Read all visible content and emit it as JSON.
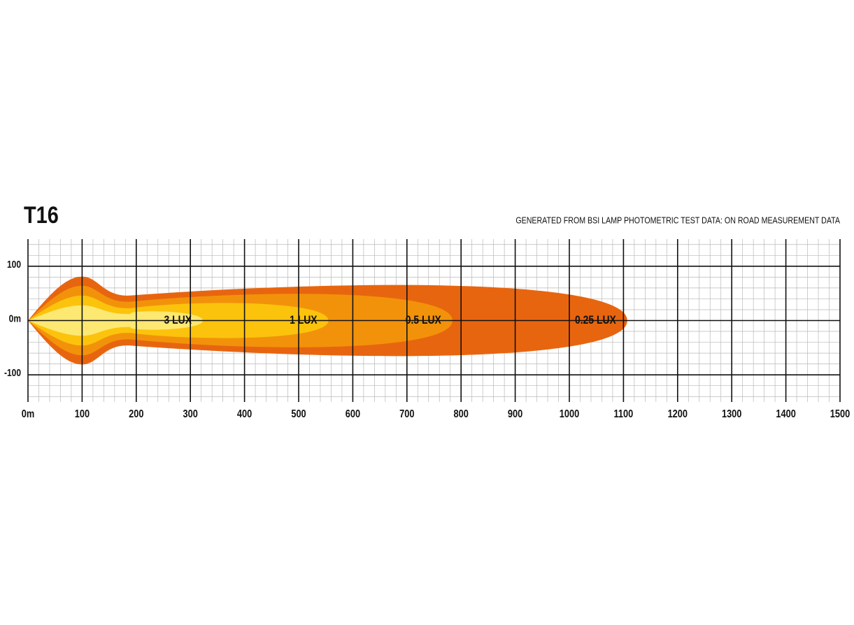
{
  "chart_data": {
    "type": "beam",
    "title": "T16",
    "subtitle": "GENERATED FROM BSI LAMP PHOTOMETRIC TEST DATA: ON ROAD MEASUREMENT DATA",
    "series": [
      {
        "name": "0.25 LUX",
        "color": "#e8650f",
        "reach": 1107,
        "half_width": 77,
        "peak_half_width": 81
      },
      {
        "name": "0.5 LUX",
        "color": "#f2920a",
        "reach": 784,
        "half_width": 58,
        "peak_half_width": 64
      },
      {
        "name": "1 LUX",
        "color": "#fcc30c",
        "reach": 555,
        "half_width": 38,
        "peak_half_width": 46
      },
      {
        "name": "3 LUX",
        "color": "#fde872",
        "reach": 323,
        "half_width": 20,
        "peak_half_width": 28
      }
    ],
    "xlim": [
      0,
      1500
    ],
    "xticks": [
      {
        "value": 0,
        "label": "0m"
      },
      100,
      200,
      300,
      400,
      500,
      600,
      700,
      800,
      900,
      1000,
      1100,
      1200,
      1300,
      1400,
      1500
    ],
    "ylim": [
      -150,
      150
    ],
    "yticks": [
      100,
      {
        "value": 0,
        "label": "0m"
      },
      -100
    ],
    "grid": true
  }
}
